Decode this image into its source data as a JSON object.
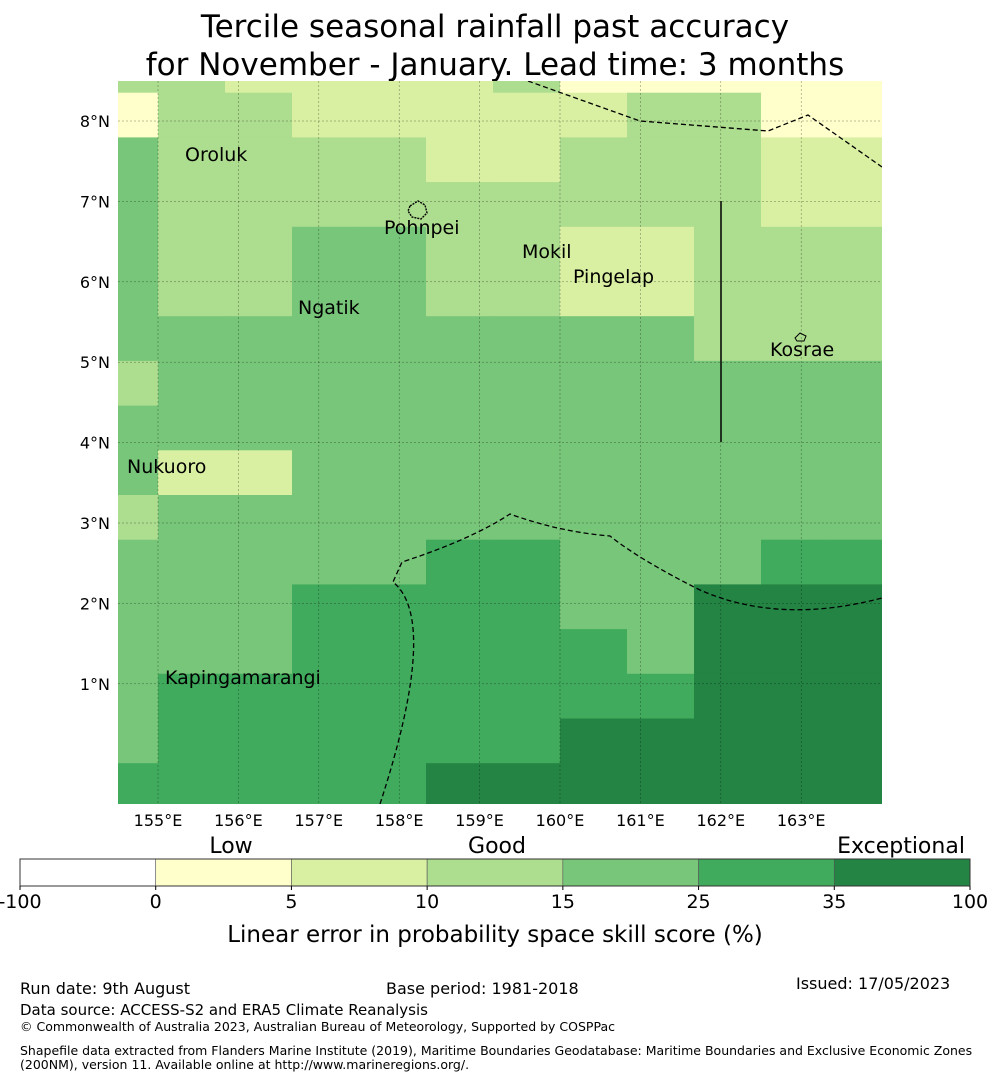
{
  "title": {
    "line1": "Tercile seasonal rainfall past accuracy",
    "line2": "for November - January. Lead time: 3 months"
  },
  "map": {
    "lon_labels": [
      "155°E",
      "156°E",
      "157°E",
      "158°E",
      "159°E",
      "160°E",
      "161°E",
      "162°E",
      "163°E"
    ],
    "lat_labels": [
      "8°N",
      "7°N",
      "6°N",
      "5°N",
      "4°N",
      "3°N",
      "2°N",
      "1°N"
    ],
    "places": [
      {
        "name": "Oroluk"
      },
      {
        "name": "Pohnpei"
      },
      {
        "name": "Mokil"
      },
      {
        "name": "Pingelap"
      },
      {
        "name": "Ngatik"
      },
      {
        "name": "Kosrae"
      },
      {
        "name": "Nukuoro"
      },
      {
        "name": "Kapingamarangi"
      }
    ],
    "grid": [
      [
        3,
        3,
        2,
        2,
        2,
        2,
        3,
        1,
        1,
        1,
        1,
        1,
        1,
        1,
        1,
        1,
        1,
        2,
        1,
        1,
        0,
        0,
        0
      ],
      [
        1,
        3,
        3,
        2,
        2,
        2,
        2,
        2,
        3,
        3,
        1,
        1,
        1,
        1,
        1,
        1,
        1,
        1,
        1,
        1,
        0,
        0,
        0
      ],
      [
        4,
        3,
        3,
        3,
        3,
        2,
        2,
        3,
        3,
        3,
        2,
        2,
        2,
        2,
        1,
        1,
        1,
        1,
        1,
        1,
        1,
        0,
        0
      ],
      [
        4,
        3,
        3,
        3,
        3,
        3,
        3,
        3,
        3,
        3,
        2,
        2,
        2,
        2,
        2,
        1,
        1,
        1,
        1,
        1,
        1,
        0,
        0
      ],
      [
        4,
        3,
        3,
        4,
        4,
        3,
        3,
        2,
        2,
        3,
        3,
        3,
        3,
        1,
        1,
        1,
        1,
        1,
        1,
        1,
        1,
        1,
        1
      ],
      [
        4,
        3,
        3,
        4,
        4,
        3,
        3,
        2,
        2,
        3,
        3,
        3,
        3,
        2,
        2,
        1,
        1,
        2,
        2,
        2,
        1,
        1,
        1
      ],
      [
        4,
        4,
        4,
        4,
        4,
        4,
        4,
        4,
        4,
        3,
        3,
        3,
        3,
        3,
        4,
        4,
        4,
        3,
        3,
        1,
        1,
        1,
        1
      ],
      [
        3,
        4,
        4,
        4,
        4,
        4,
        4,
        4,
        4,
        4,
        4,
        4,
        4,
        4,
        3,
        3,
        3,
        3,
        4,
        4,
        3,
        3,
        3
      ],
      [
        4,
        4,
        4,
        4,
        4,
        4,
        4,
        4,
        4,
        4,
        4,
        4,
        4,
        4,
        4,
        4,
        4,
        4,
        4,
        4,
        4,
        4,
        4
      ],
      [
        4,
        2,
        2,
        4,
        4,
        4,
        4,
        4,
        4,
        4,
        4,
        4,
        4,
        4,
        4,
        4,
        4,
        4,
        4,
        4,
        4,
        4,
        4
      ],
      [
        3,
        4,
        4,
        4,
        4,
        4,
        4,
        4,
        4,
        4,
        4,
        4,
        4,
        4,
        4,
        4,
        4,
        4,
        4,
        5,
        5,
        5,
        5
      ],
      [
        4,
        4,
        4,
        4,
        4,
        5,
        5,
        4,
        4,
        4,
        5,
        5,
        5,
        5,
        5,
        5,
        5,
        5,
        5,
        5,
        5,
        6,
        6
      ],
      [
        4,
        4,
        4,
        5,
        5,
        5,
        5,
        4,
        4,
        6,
        6,
        6,
        6,
        6,
        6,
        6,
        5,
        5,
        6,
        6,
        6,
        6,
        6
      ],
      [
        4,
        4,
        4,
        5,
        5,
        5,
        5,
        5,
        4,
        6,
        6,
        6,
        6,
        6,
        6,
        6,
        6,
        6,
        6,
        6,
        6,
        6,
        6
      ],
      [
        4,
        5,
        5,
        5,
        5,
        5,
        5,
        5,
        5,
        6,
        6,
        6,
        6,
        6,
        6,
        6,
        6,
        6,
        6,
        6,
        6,
        6,
        6
      ],
      [
        4,
        5,
        5,
        5,
        5,
        5,
        5,
        6,
        6,
        6,
        6,
        6,
        6,
        6,
        6,
        6,
        6,
        6,
        6,
        6,
        6,
        6,
        6
      ],
      [
        5,
        5,
        5,
        5,
        5,
        6,
        6,
        6,
        6,
        6,
        6,
        6,
        6,
        6,
        6,
        6,
        6,
        6,
        6,
        6,
        6,
        6,
        6
      ],
      [
        4,
        5,
        5,
        5,
        5,
        5,
        5,
        5,
        5,
        5,
        5,
        5,
        5,
        6,
        6,
        6,
        6,
        6,
        6,
        6,
        6,
        6,
        6
      ],
      [
        4,
        4,
        4,
        5,
        5,
        5,
        5,
        5,
        5,
        5,
        5,
        5,
        5,
        6,
        6,
        6,
        6,
        6,
        6,
        6,
        6,
        6,
        6
      ]
    ]
  },
  "legend": {
    "categories": [
      "Low",
      "Good",
      "Exceptional"
    ],
    "ticks": [
      "-100",
      "0",
      "5",
      "10",
      "15",
      "25",
      "35",
      "100"
    ],
    "colors": [
      "#ffffff",
      "#ffffcc",
      "#d9f0a3",
      "#addd8e",
      "#78c679",
      "#41ab5d",
      "#238443"
    ],
    "axis_label": "Linear error in probability space skill score (%)"
  },
  "footer": {
    "run_date": "Run date: 9th August",
    "base_period": "Base period: 1981-2018",
    "issued": "Issued: 17/05/2023",
    "data_source": "Data source: ACCESS-S2 and ERA5 Climate Reanalysis",
    "copyright": "© Commonwealth of Australia 2023, Australian Bureau of Meteorology, Supported by COSPPac",
    "shapefile_1": "Shapefile data extracted from Flanders Marine Institute (2019), Maritime Boundaries Geodatabase: Maritime Boundaries and Exclusive Economic Zones",
    "shapefile_2": "(200NM), version 11. Available online at http://www.marineregions.org/."
  }
}
